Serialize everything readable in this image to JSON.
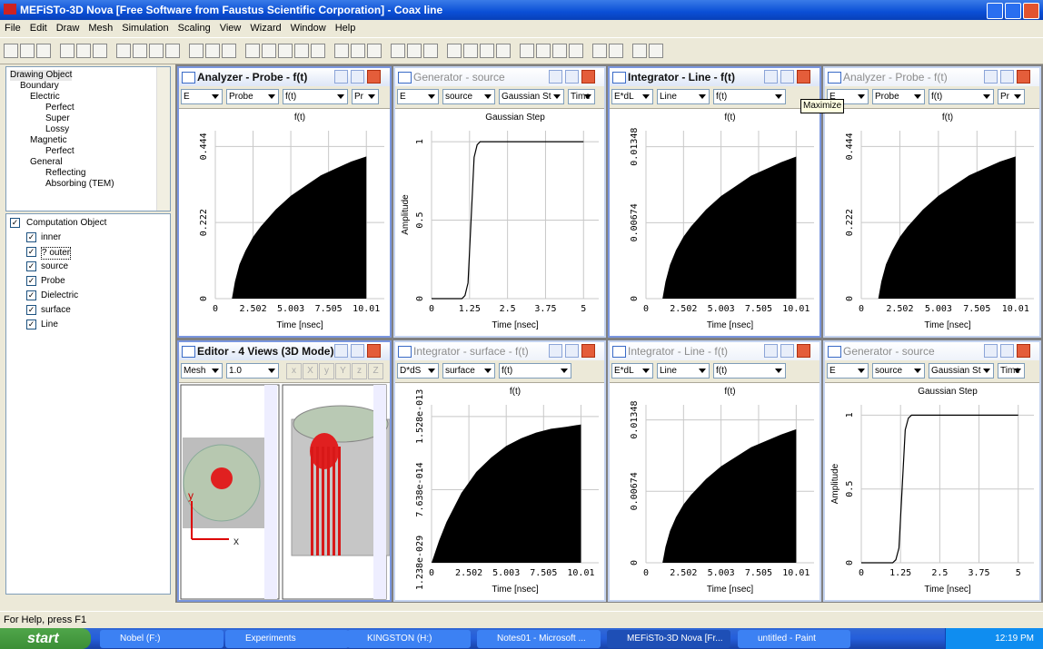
{
  "title_bar": {
    "title": "MEFiSTo-3D Nova [Free Software from Faustus Scientific Corporation] - Coax line"
  },
  "menu": [
    "File",
    "Edit",
    "Draw",
    "Mesh",
    "Simulation",
    "Scaling",
    "View",
    "Wizard",
    "Window",
    "Help"
  ],
  "drawing_tree": {
    "label": "Drawing Object",
    "children": [
      {
        "label": "Boundary",
        "children": [
          {
            "label": "Electric",
            "children": [
              {
                "label": "Perfect"
              },
              {
                "label": "Super"
              },
              {
                "label": "Lossy"
              }
            ]
          },
          {
            "label": "Magnetic",
            "children": [
              {
                "label": "Perfect"
              }
            ]
          },
          {
            "label": "General",
            "children": [
              {
                "label": "Reflecting"
              },
              {
                "label": "Absorbing (TEM)"
              }
            ]
          }
        ]
      }
    ]
  },
  "computation_objects": {
    "label": "Computation Object",
    "items": [
      "inner",
      "? outer",
      "source",
      "Probe",
      "Dielectric",
      "surface",
      "Line"
    ]
  },
  "windows": [
    {
      "title": "Analyzer - Probe - f(t)",
      "active": true,
      "controls": [
        "E",
        "Probe",
        "f(t)",
        "Pr"
      ],
      "chart": {
        "type": "area",
        "title": "f(t)",
        "x_label": "Time [nsec]",
        "xlim": [
          0,
          11.2
        ],
        "ylim": [
          0,
          0.49
        ],
        "xticks": [
          0,
          2.502,
          5.003,
          7.505,
          10.01
        ],
        "yticks": [
          0,
          0.222,
          0.444
        ],
        "x": [
          1.1,
          1.3,
          1.6,
          2,
          2.5,
          3,
          4,
          5,
          6,
          7,
          8,
          9,
          10.01
        ],
        "values": [
          0,
          0.05,
          0.1,
          0.14,
          0.18,
          0.21,
          0.26,
          0.3,
          0.33,
          0.36,
          0.38,
          0.4,
          0.415
        ]
      }
    },
    {
      "title": "Generator - source",
      "active": false,
      "controls": [
        "E",
        "source",
        "Gaussian St",
        "Time"
      ],
      "chart": {
        "type": "line",
        "title": "Gaussian Step",
        "x_label": "Time [nsec]",
        "y_label": "Amplitude",
        "xlim": [
          0,
          5.5
        ],
        "ylim": [
          0,
          1.07
        ],
        "xticks": [
          0,
          1.25,
          2.5,
          3.75,
          5
        ],
        "yticks": [
          0,
          0.5,
          1
        ],
        "x": [
          0,
          1.0,
          1.1,
          1.2,
          1.25,
          1.3,
          1.35,
          1.4,
          1.5,
          1.6,
          5
        ],
        "values": [
          0,
          0,
          0.02,
          0.1,
          0.3,
          0.5,
          0.7,
          0.9,
          0.98,
          1,
          1
        ]
      }
    },
    {
      "title": "Integrator - Line - f(t)",
      "active": true,
      "controls": [
        "E*dL",
        "Line",
        "f(t)"
      ],
      "chart": {
        "type": "area",
        "title": "f(t)",
        "x_label": "Time [nsec]",
        "xlim": [
          0,
          11.2
        ],
        "ylim": [
          0,
          0.0149
        ],
        "xticks": [
          0,
          2.502,
          5.003,
          7.505,
          10.01
        ],
        "yticks": [
          0,
          0.00674,
          0.01348
        ],
        "x": [
          1.1,
          1.3,
          1.6,
          2,
          2.5,
          3,
          4,
          5,
          6,
          7,
          8,
          9,
          10.01
        ],
        "values": [
          0,
          0.0015,
          0.003,
          0.0043,
          0.0055,
          0.0064,
          0.0079,
          0.0091,
          0.01,
          0.0109,
          0.0115,
          0.0121,
          0.0126
        ]
      }
    },
    {
      "title": "Analyzer - Probe - f(t)",
      "active": false,
      "controls": [
        "E",
        "Probe",
        "f(t)",
        "Pr"
      ],
      "chart": {
        "type": "area",
        "title": "f(t)",
        "x_label": "Time [nsec]",
        "xlim": [
          0,
          11.2
        ],
        "ylim": [
          0,
          0.49
        ],
        "xticks": [
          0,
          2.502,
          5.003,
          7.505,
          10.01
        ],
        "yticks": [
          0,
          0.222,
          0.444
        ],
        "x": [
          1.1,
          1.3,
          1.6,
          2,
          2.5,
          3,
          4,
          5,
          6,
          7,
          8,
          9,
          10.01
        ],
        "values": [
          0,
          0.05,
          0.1,
          0.14,
          0.18,
          0.21,
          0.26,
          0.3,
          0.33,
          0.36,
          0.38,
          0.4,
          0.415
        ]
      }
    },
    {
      "title": "Editor - 4 Views (3D Mode)",
      "active": true,
      "controls": [
        "Mesh",
        "1.0"
      ],
      "buttons": [
        "x",
        "X",
        "y",
        "Y",
        "z",
        "Z"
      ],
      "axis_labels": [
        "y",
        "x"
      ]
    },
    {
      "title": "Integrator - surface - f(t)",
      "active": false,
      "controls": [
        "D*dS",
        "surface",
        "f(t)"
      ],
      "chart": {
        "type": "area",
        "title": "f(t)",
        "x_label": "Time [nsec]",
        "xlim": [
          0,
          11.2
        ],
        "ylim": [
          0,
          1.65e-13
        ],
        "xticks": [
          0,
          2.502,
          5.003,
          7.505,
          10.01
        ],
        "yticks": [
          {
            "value": 1.238e-29,
            "label": "1.238e-029"
          },
          {
            "value": 7.638e-14,
            "label": "7.638e-014"
          },
          {
            "value": 1.528e-13,
            "label": "1.528e-013"
          }
        ],
        "x": [
          0,
          0.5,
          1,
          2,
          3,
          4,
          5,
          6,
          7,
          8,
          9,
          10.01
        ],
        "values": [
          0,
          2.3e-14,
          4.25e-14,
          7.3e-14,
          9.5e-14,
          1.1e-13,
          1.22e-13,
          1.3e-13,
          1.36e-13,
          1.4e-13,
          1.42e-13,
          1.445e-13
        ]
      }
    },
    {
      "title": "Integrator - Line - f(t)",
      "active": false,
      "controls": [
        "E*dL",
        "Line",
        "f(t)"
      ],
      "chart": {
        "type": "area",
        "title": "f(t)",
        "x_label": "Time [nsec]",
        "xlim": [
          0,
          11.2
        ],
        "ylim": [
          0,
          0.0149
        ],
        "xticks": [
          0,
          2.502,
          5.003,
          7.505,
          10.01
        ],
        "yticks": [
          0,
          0.00674,
          0.01348
        ],
        "x": [
          1.1,
          1.3,
          1.6,
          2,
          2.5,
          3,
          4,
          5,
          6,
          7,
          8,
          9,
          10.01
        ],
        "values": [
          0,
          0.0015,
          0.003,
          0.0043,
          0.0055,
          0.0064,
          0.0079,
          0.0091,
          0.01,
          0.0109,
          0.0115,
          0.0121,
          0.0126
        ]
      }
    },
    {
      "title": "Generator - source",
      "active": false,
      "controls": [
        "E",
        "source",
        "Gaussian St",
        "Time"
      ],
      "chart": {
        "type": "line",
        "title": "Gaussian Step",
        "x_label": "Time [nsec]",
        "y_label": "Amplitude",
        "xlim": [
          0,
          5.5
        ],
        "ylim": [
          0,
          1.07
        ],
        "xticks": [
          0,
          1.25,
          2.5,
          3.75,
          5
        ],
        "yticks": [
          0,
          0.5,
          1
        ],
        "x": [
          0,
          1.0,
          1.1,
          1.2,
          1.25,
          1.3,
          1.35,
          1.4,
          1.5,
          1.6,
          5
        ],
        "values": [
          0,
          0,
          0.02,
          0.1,
          0.3,
          0.5,
          0.7,
          0.9,
          0.98,
          1,
          1
        ]
      }
    }
  ],
  "tooltip": "Maximize",
  "status": "For Help, press F1",
  "taskbar": {
    "start": "start",
    "items": [
      "Nobel (F:)",
      "Experiments",
      "KINGSTON (H:)",
      "Notes01 - Microsoft ...",
      "MEFiSTo-3D Nova [Fr...",
      "untitled - Paint"
    ],
    "clock": "12:19 PM"
  }
}
